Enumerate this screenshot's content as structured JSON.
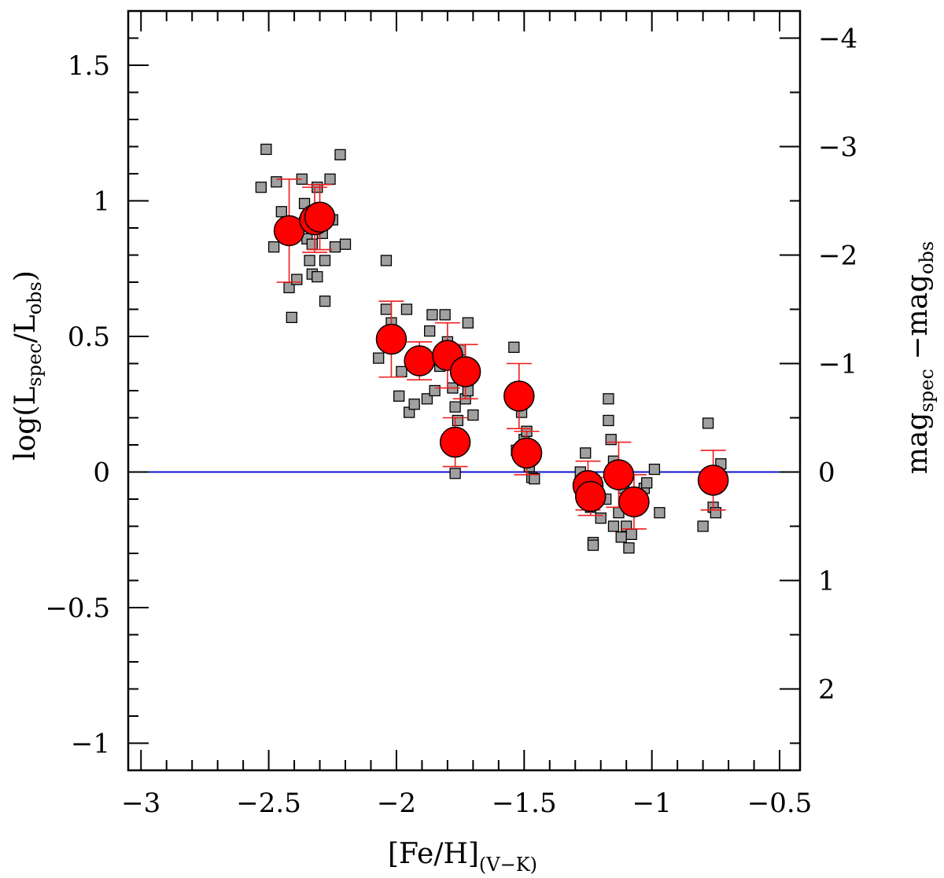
{
  "chart_data": {
    "type": "scatter",
    "xlabel": {
      "main": "[Fe/H]",
      "sub": "(V−K)"
    },
    "ylabel": {
      "pre": "log(L",
      "sub1": "spec",
      "mid": "/L",
      "sub2": "obs",
      "post": ")"
    },
    "y2label": {
      "pre": "mag",
      "sub1": "spec",
      "mid": " −mag",
      "sub2": "obs"
    },
    "xlim": [
      -3.05,
      -0.42
    ],
    "ylim": [
      -1.1,
      1.7
    ],
    "xticks": [
      -3,
      -2.5,
      -2,
      -1.5,
      -1,
      -0.5
    ],
    "xtick_labels": [
      "−3",
      "−2.5",
      "−2",
      "−1.5",
      "−1",
      "−0.5"
    ],
    "yticks": [
      -1,
      -0.5,
      0,
      0.5,
      1,
      1.5
    ],
    "ytick_labels": [
      "−1",
      "−0.5",
      "0",
      "0.5",
      "1",
      "1.5"
    ],
    "y2ticks": [
      -4,
      -3,
      -2,
      -1,
      0,
      1,
      2
    ],
    "y2tick_labels": [
      "−4",
      "−3",
      "−2",
      "−1",
      "0",
      "1",
      "2"
    ],
    "y2_relation": "mag = -2.5 * log(L)",
    "reference_line": {
      "y": 0,
      "color": "#1010d0"
    },
    "colors": {
      "stars": "#a0a0a0",
      "clusters": "#ff0000",
      "errorbars": "#ee1c1c"
    },
    "series": [
      {
        "marker": "square",
        "points": [
          [
            -2.51,
            1.19
          ],
          [
            -2.53,
            1.05
          ],
          [
            -2.47,
            1.07
          ],
          [
            -2.45,
            0.96
          ],
          [
            -2.48,
            0.83
          ],
          [
            -2.42,
            0.68
          ],
          [
            -2.41,
            0.57
          ],
          [
            -2.39,
            0.71
          ],
          [
            -2.37,
            1.08
          ],
          [
            -2.36,
            0.99
          ],
          [
            -2.35,
            0.86
          ],
          [
            -2.34,
            0.78
          ],
          [
            -2.33,
            0.73
          ],
          [
            -2.32,
            0.9
          ],
          [
            -2.31,
            1.05
          ],
          [
            -2.3,
            0.97
          ],
          [
            -2.29,
            0.88
          ],
          [
            -2.28,
            0.78
          ],
          [
            -2.28,
            0.63
          ],
          [
            -2.27,
            0.95
          ],
          [
            -2.26,
            1.08
          ],
          [
            -2.25,
            0.93
          ],
          [
            -2.24,
            0.83
          ],
          [
            -2.22,
            1.17
          ],
          [
            -2.33,
            0.84
          ],
          [
            -2.31,
            0.72
          ],
          [
            -2.36,
            0.92
          ],
          [
            -2.2,
            0.84
          ],
          [
            -2.04,
            0.78
          ],
          [
            -2.04,
            0.6
          ],
          [
            -2.07,
            0.42
          ],
          [
            -2.02,
            0.55
          ],
          [
            -1.99,
            0.28
          ],
          [
            -1.98,
            0.37
          ],
          [
            -1.96,
            0.6
          ],
          [
            -1.95,
            0.22
          ],
          [
            -1.93,
            0.25
          ],
          [
            -1.9,
            0.42
          ],
          [
            -1.88,
            0.27
          ],
          [
            -1.87,
            0.52
          ],
          [
            -1.86,
            0.58
          ],
          [
            -1.85,
            0.3
          ],
          [
            -1.83,
            0.39
          ],
          [
            -1.81,
            0.58
          ],
          [
            -1.8,
            0.48
          ],
          [
            -1.78,
            0.31
          ],
          [
            -1.77,
            0.24
          ],
          [
            -1.76,
            0.19
          ],
          [
            -1.75,
            0.45
          ],
          [
            -1.74,
            0.36
          ],
          [
            -1.73,
            0.27
          ],
          [
            -1.72,
            0.55
          ],
          [
            -1.71,
            0.39
          ],
          [
            -1.7,
            0.21
          ],
          [
            -1.77,
            -0.005
          ],
          [
            -1.76,
            0.09
          ],
          [
            -1.72,
            0.3
          ],
          [
            -1.54,
            0.46
          ],
          [
            -1.53,
            0.31
          ],
          [
            -1.51,
            0.22
          ],
          [
            -1.5,
            0.12
          ],
          [
            -1.49,
            0.15
          ],
          [
            -1.48,
            0.02
          ],
          [
            -1.47,
            -0.02
          ],
          [
            -1.46,
            -0.025
          ],
          [
            -1.53,
            0.08
          ],
          [
            -1.51,
            0.06
          ],
          [
            -1.28,
            0.0
          ],
          [
            -1.26,
            0.07
          ],
          [
            -1.25,
            -0.04
          ],
          [
            -1.24,
            -0.13
          ],
          [
            -1.23,
            -0.26
          ],
          [
            -1.22,
            -0.04
          ],
          [
            -1.2,
            -0.17
          ],
          [
            -1.18,
            -0.1
          ],
          [
            -1.17,
            0.27
          ],
          [
            -1.17,
            0.19
          ],
          [
            -1.16,
            0.12
          ],
          [
            -1.15,
            0.04
          ],
          [
            -1.14,
            -0.03
          ],
          [
            -1.13,
            -0.15
          ],
          [
            -1.12,
            -0.24
          ],
          [
            -1.11,
            -0.06
          ],
          [
            -1.1,
            -0.2
          ],
          [
            -1.09,
            -0.28
          ],
          [
            -1.08,
            -0.23
          ],
          [
            -1.06,
            -0.08
          ],
          [
            -1.05,
            -0.12
          ],
          [
            -1.03,
            -0.06
          ],
          [
            -1.02,
            -0.04
          ],
          [
            -0.99,
            0.01
          ],
          [
            -0.97,
            -0.15
          ],
          [
            -0.8,
            -0.2
          ],
          [
            -0.78,
            0.18
          ],
          [
            -0.76,
            -0.13
          ],
          [
            -0.75,
            -0.15
          ],
          [
            -0.73,
            0.03
          ],
          [
            -1.23,
            -0.27
          ],
          [
            -1.15,
            -0.2
          ]
        ]
      },
      {
        "marker": "circle",
        "points": [
          {
            "x": -2.42,
            "y": 0.89,
            "yerr": 0.19
          },
          {
            "x": -2.32,
            "y": 0.93,
            "yerr": 0.12
          },
          {
            "x": -2.3,
            "y": 0.94,
            "yerr": 0.12
          },
          {
            "x": -2.02,
            "y": 0.49,
            "yerr": 0.14
          },
          {
            "x": -1.91,
            "y": 0.41,
            "yerr": 0.07
          },
          {
            "x": -1.8,
            "y": 0.43,
            "yerr": 0.12
          },
          {
            "x": -1.77,
            "y": 0.11,
            "yerr": 0.09
          },
          {
            "x": -1.73,
            "y": 0.37,
            "yerr": 0.1
          },
          {
            "x": -1.52,
            "y": 0.28,
            "yerr": 0.12
          },
          {
            "x": -1.49,
            "y": 0.07,
            "yerr": 0.08
          },
          {
            "x": -1.25,
            "y": -0.05,
            "yerr": 0.09
          },
          {
            "x": -1.24,
            "y": -0.09,
            "yerr": 0.07
          },
          {
            "x": -1.13,
            "y": -0.01,
            "yerr": 0.12
          },
          {
            "x": -1.07,
            "y": -0.11,
            "yerr": 0.1
          },
          {
            "x": -0.76,
            "y": -0.03,
            "yerr": 0.11
          }
        ]
      }
    ]
  }
}
